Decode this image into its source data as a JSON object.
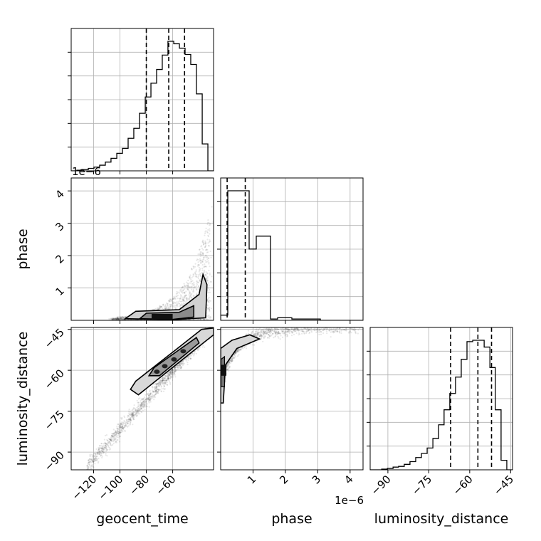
{
  "chart_data": {
    "type": "corner",
    "parameters": [
      "geocent_time",
      "phase",
      "luminosity_distance"
    ],
    "axis_labels": {
      "x": [
        "geocent_time",
        "phase",
        "luminosity_distance"
      ],
      "y": [
        "",
        "phase",
        "luminosity_distance"
      ]
    },
    "offset_texts": [
      {
        "panel": "geocent_time-hist",
        "text": "1e−6"
      },
      {
        "panel": "phase-bottom",
        "text": "1e−6"
      }
    ],
    "ranges": {
      "geocent_time": [
        -137,
        -29
      ],
      "phase": [
        0.0,
        4.4
      ],
      "luminosity_distance": [
        -96.5,
        -44.3
      ]
    },
    "ticks": {
      "geocent_time": {
        "values": [
          -120,
          -100,
          -80,
          -60
        ],
        "labels": [
          "−120",
          "−100",
          "−80",
          "−60"
        ]
      },
      "phase": {
        "values": [
          1,
          2,
          3,
          4
        ],
        "labels": [
          "1",
          "2",
          "3",
          "4"
        ]
      },
      "luminosity_distance": {
        "values": [
          -90,
          -75,
          -60,
          -45
        ],
        "labels": [
          "−90",
          "−75",
          "−60",
          "−45"
        ]
      }
    },
    "grid": true,
    "histograms": {
      "geocent_time": {
        "edges": [
          -137,
          -132.7,
          -128.4,
          -124.0,
          -119.7,
          -115.4,
          -111.1,
          -106.8,
          -102.4,
          -98.1,
          -93.8,
          -89.5,
          -85.2,
          -80.8,
          -76.5,
          -72.2,
          -67.9,
          -63.6,
          -59.2,
          -54.9,
          -50.6,
          -46.3,
          -42.0,
          -37.6,
          -33.3,
          -29.0
        ],
        "counts": [
          0,
          1,
          2,
          4,
          6,
          9,
          14,
          20,
          28,
          36,
          52,
          68,
          92,
          118,
          140,
          162,
          185,
          207,
          203,
          196,
          186,
          170,
          123,
          43,
          0
        ],
        "quantiles": [
          -80,
          -63,
          -51
        ]
      },
      "phase": {
        "edges": [
          0,
          0.22,
          0.44,
          0.66,
          0.88,
          1.1,
          1.32,
          1.54,
          1.76,
          1.98,
          2.2,
          2.42,
          2.64,
          2.86,
          3.08,
          3.3,
          3.52,
          3.74,
          3.96,
          4.18,
          4.4
        ],
        "counts": [
          4,
          100,
          100,
          100,
          55,
          65,
          65,
          1,
          2,
          2,
          1,
          1,
          1,
          1,
          0,
          0,
          0,
          0,
          0,
          0
        ],
        "quantiles": [
          0.2,
          0.76
        ]
      },
      "luminosity_distance": {
        "edges": [
          -96.5,
          -94.4,
          -92.3,
          -90.2,
          -88.1,
          -86.1,
          -84.0,
          -81.9,
          -79.8,
          -77.7,
          -75.6,
          -73.5,
          -71.4,
          -69.4,
          -67.3,
          -65.2,
          -63.1,
          -61.0,
          -58.9,
          -56.8,
          -54.7,
          -52.6,
          -50.6,
          -48.5,
          -46.4,
          -44.3
        ],
        "counts": [
          0,
          0,
          1,
          2,
          4,
          5,
          8,
          12,
          18,
          24,
          32,
          46,
          66,
          88,
          112,
          136,
          162,
          188,
          190,
          190,
          180,
          150,
          88,
          14,
          0
        ],
        "quantiles": [
          -67,
          -57,
          -52
        ]
      }
    },
    "contours": {
      "geocent_time_vs_phase": {
        "peak": [
          -65,
          0.12
        ],
        "levels": [
          0.39,
          0.86
        ]
      },
      "geocent_time_vs_luminosity_distance": {
        "peak": [
          -60,
          -56
        ],
        "levels": [
          0.39,
          0.86
        ]
      },
      "phase_vs_luminosity_distance": {
        "peak": [
          0.03,
          -63
        ],
        "levels": [
          0.39,
          0.86
        ]
      }
    }
  }
}
